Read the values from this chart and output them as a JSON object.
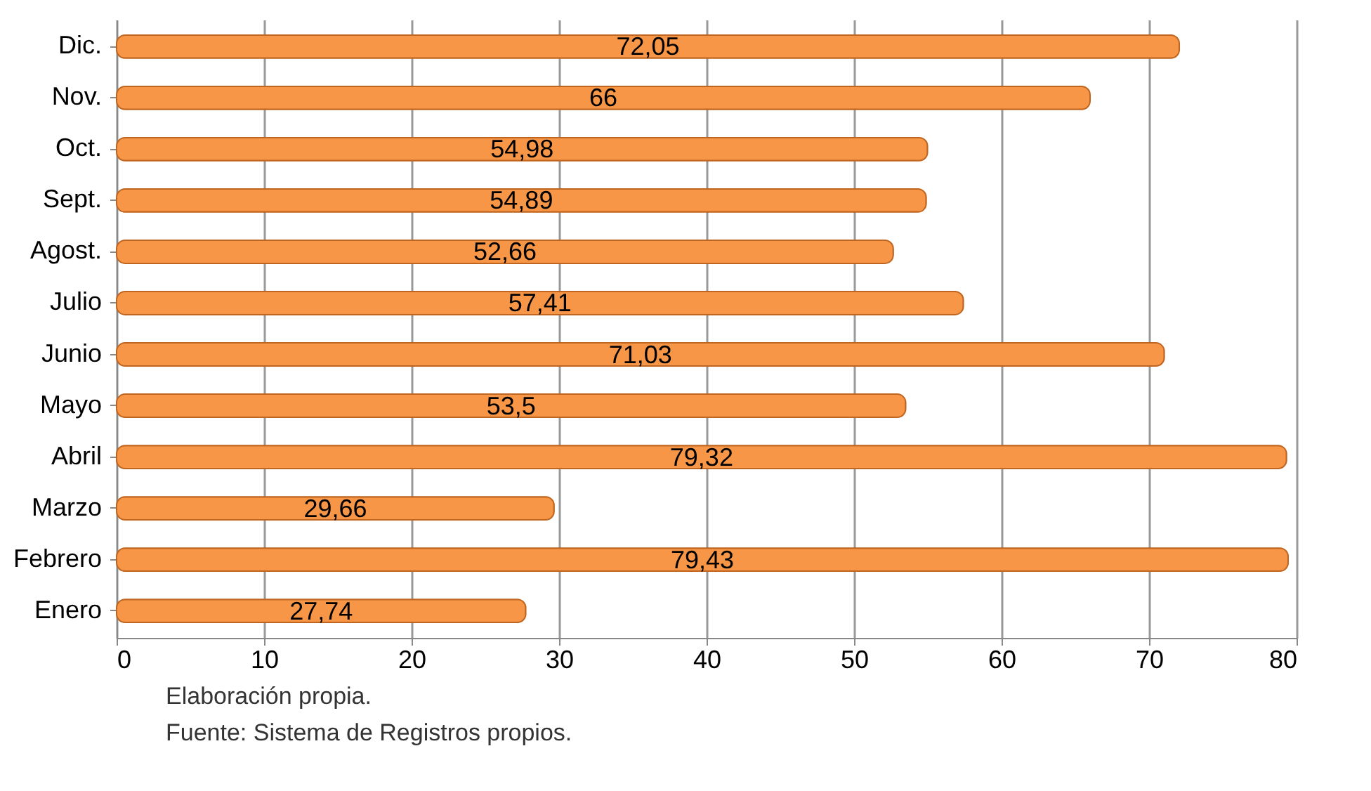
{
  "chart_data": {
    "type": "bar",
    "orientation": "horizontal",
    "categories": [
      "Dic.",
      "Nov.",
      "Oct.",
      "Sept.",
      "Agost.",
      "Julio",
      "Junio",
      "Mayo",
      "Abril",
      "Marzo",
      "Febrero",
      "Enero"
    ],
    "values": [
      72.05,
      66,
      54.98,
      54.89,
      52.66,
      57.41,
      71.03,
      53.5,
      79.32,
      29.66,
      79.43,
      27.74
    ],
    "value_labels": [
      "72,05",
      "66",
      "54,98",
      "54,89",
      "52,66",
      "57,41",
      "71,03",
      "53,5",
      "79,32",
      "29,66",
      "79,43",
      "27,74"
    ],
    "color": "#f79646",
    "xlim": [
      0,
      80
    ],
    "xticks": [
      0,
      10,
      20,
      30,
      40,
      50,
      60,
      70,
      80
    ],
    "grid": "x",
    "annotations": [
      "Elaboración propia.",
      "Fuente: Sistema de Registros propios."
    ]
  }
}
